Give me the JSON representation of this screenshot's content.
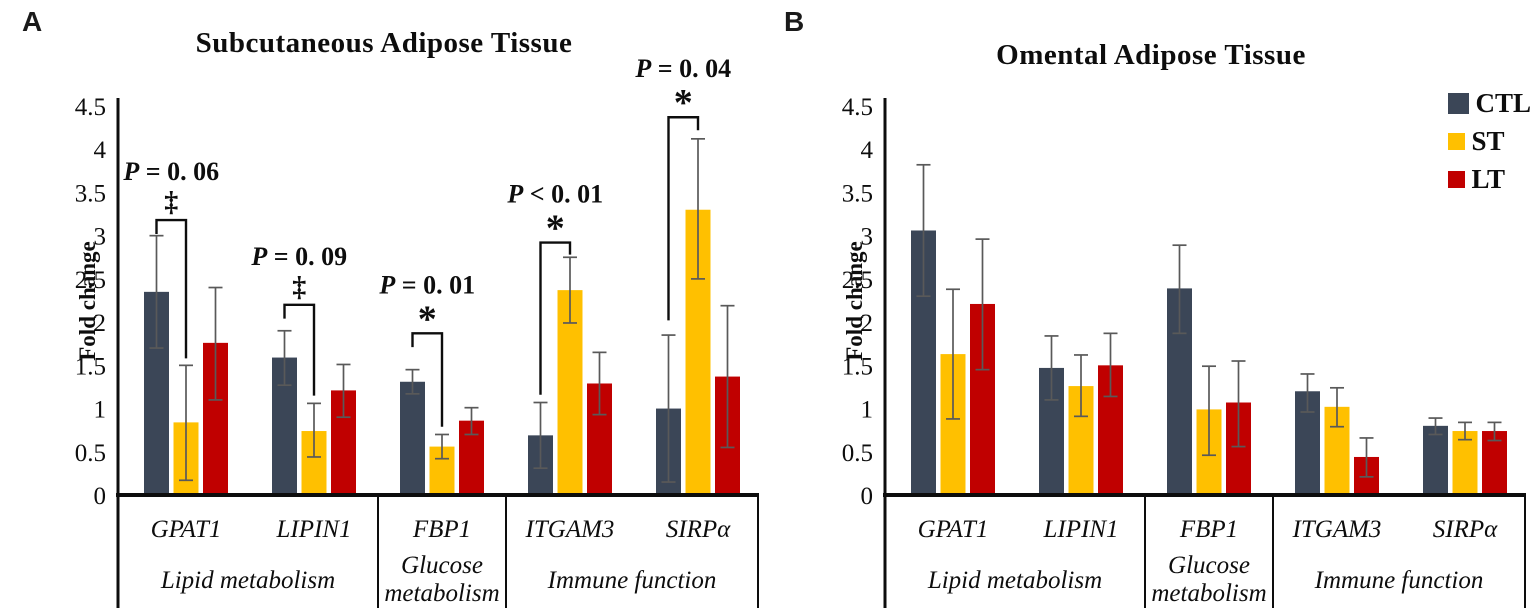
{
  "figure": {
    "panels": [
      {
        "letter": "A"
      },
      {
        "letter": "B"
      }
    ]
  },
  "colors": {
    "ctl": "#3B4657",
    "st": "#FFC000",
    "lt": "#C00000",
    "error_bar": "#595959",
    "line": "#0d0d0d"
  },
  "legend": {
    "items": [
      {
        "label": "CTL",
        "color": "#3B4657"
      },
      {
        "label": "ST",
        "color": "#FFC000"
      },
      {
        "label": "LT",
        "color": "#C00000"
      }
    ]
  },
  "chart_data": [
    {
      "type": "bar",
      "panel": "A",
      "title": "Subcutaneous Adipose Tissue",
      "ylabel": "Fold change",
      "ylim": [
        0,
        4.5
      ],
      "yticks": [
        0,
        0.5,
        1,
        1.5,
        2,
        2.5,
        3,
        3.5,
        4,
        4.5
      ],
      "grid": false,
      "categories": [
        "GPAT1",
        "LIPIN1",
        "FBP1",
        "ITGAM3",
        "SIRPα"
      ],
      "sections": [
        {
          "label": "Lipid metabolism",
          "from": 0,
          "to": 1
        },
        {
          "label": "Glucose metabolism",
          "from": 2,
          "to": 2
        },
        {
          "label": "Immune function",
          "from": 3,
          "to": 4
        }
      ],
      "series": [
        {
          "name": "CTL",
          "color": "#3B4657",
          "values": [
            2.35,
            1.59,
            1.31,
            0.69,
            1.0
          ],
          "err_lo": [
            1.7,
            1.27,
            1.17,
            0.31,
            0.15
          ],
          "err_hi": [
            3.0,
            1.9,
            1.45,
            1.07,
            1.85
          ]
        },
        {
          "name": "ST",
          "color": "#FFC000",
          "values": [
            0.84,
            0.74,
            0.56,
            2.37,
            3.3
          ],
          "err_lo": [
            0.17,
            0.44,
            0.42,
            1.99,
            2.5
          ],
          "err_hi": [
            1.5,
            1.06,
            0.7,
            2.75,
            4.12
          ]
        },
        {
          "name": "LT",
          "color": "#C00000",
          "values": [
            1.76,
            1.21,
            0.86,
            1.29,
            1.37
          ],
          "err_lo": [
            1.1,
            0.9,
            0.7,
            0.93,
            0.55
          ],
          "err_hi": [
            2.4,
            1.51,
            1.01,
            1.65,
            2.19
          ]
        }
      ],
      "annotations": [
        {
          "text": "P = 0. 06",
          "symbol": "‡",
          "group": 0,
          "from": "CTL",
          "to": "ST",
          "y_top": 3.18,
          "left_to": 3.02,
          "right_to": 1.58
        },
        {
          "text": "P = 0. 09",
          "symbol": "‡",
          "group": 1,
          "from": "CTL",
          "to": "ST",
          "y_top": 2.2,
          "left_to": 2.04,
          "right_to": 1.15
        },
        {
          "text": "P = 0. 01",
          "symbol": "*",
          "group": 2,
          "from": "CTL",
          "to": "ST",
          "y_top": 1.87,
          "left_to": 1.71,
          "right_to": 0.79
        },
        {
          "text": "P < 0. 01",
          "symbol": "*",
          "group": 3,
          "from": "CTL",
          "to": "ST",
          "y_top": 2.92,
          "left_to": 1.16,
          "right_to": 2.78
        },
        {
          "text": "P = 0. 04",
          "symbol": "*",
          "group": 4,
          "from": "CTL",
          "to": "ST",
          "y_top": 4.37,
          "left_to": 2.02,
          "right_to": 4.22
        }
      ],
      "legend_visible": false
    },
    {
      "type": "bar",
      "panel": "B",
      "title": "Omental Adipose Tissue",
      "ylabel": "Fold change",
      "ylim": [
        0,
        4.5
      ],
      "yticks": [
        0,
        0.5,
        1,
        1.5,
        2,
        2.5,
        3,
        3.5,
        4,
        4.5
      ],
      "grid": false,
      "categories": [
        "GPAT1",
        "LIPIN1",
        "FBP1",
        "ITGAM3",
        "SIRPα"
      ],
      "sections": [
        {
          "label": "Lipid metabolism",
          "from": 0,
          "to": 1
        },
        {
          "label": "Glucose metabolism",
          "from": 2,
          "to": 2
        },
        {
          "label": "Immune function",
          "from": 3,
          "to": 4
        }
      ],
      "series": [
        {
          "name": "CTL",
          "color": "#3B4657",
          "values": [
            3.06,
            1.47,
            2.39,
            1.2,
            0.8
          ],
          "err_lo": [
            2.3,
            1.1,
            1.87,
            0.96,
            0.7
          ],
          "err_hi": [
            3.82,
            1.84,
            2.89,
            1.4,
            0.89
          ]
        },
        {
          "name": "ST",
          "color": "#FFC000",
          "values": [
            1.63,
            1.26,
            0.99,
            1.02,
            0.74
          ],
          "err_lo": [
            0.88,
            0.91,
            0.46,
            0.79,
            0.64
          ],
          "err_hi": [
            2.38,
            1.62,
            1.49,
            1.24,
            0.84
          ]
        },
        {
          "name": "LT",
          "color": "#C00000",
          "values": [
            2.21,
            1.5,
            1.07,
            0.44,
            0.74
          ],
          "err_lo": [
            1.45,
            1.14,
            0.56,
            0.21,
            0.63
          ],
          "err_hi": [
            2.96,
            1.87,
            1.55,
            0.66,
            0.84
          ]
        }
      ],
      "annotations": [],
      "legend_visible": true
    }
  ]
}
